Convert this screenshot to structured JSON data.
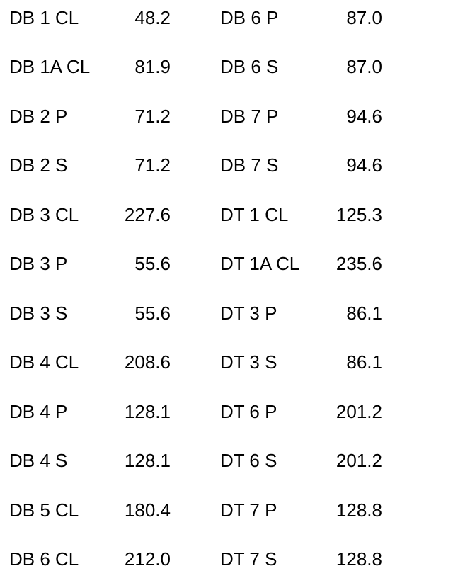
{
  "rows": [
    {
      "left_name": "DB 1 CL",
      "left_value": "48.2",
      "right_name": "DB 6 P",
      "right_value": "87.0"
    },
    {
      "left_name": "DB 1A CL",
      "left_value": "81.9",
      "right_name": "DB 6 S",
      "right_value": "87.0"
    },
    {
      "left_name": "DB 2 P",
      "left_value": "71.2",
      "right_name": "DB 7 P",
      "right_value": "94.6"
    },
    {
      "left_name": "DB 2 S",
      "left_value": "71.2",
      "right_name": "DB 7 S",
      "right_value": "94.6"
    },
    {
      "left_name": "DB 3 CL",
      "left_value": "227.6",
      "right_name": "DT 1 CL",
      "right_value": "125.3"
    },
    {
      "left_name": "DB 3 P",
      "left_value": "55.6",
      "right_name": "DT 1A CL",
      "right_value": "235.6"
    },
    {
      "left_name": "DB 3 S",
      "left_value": "55.6",
      "right_name": "DT 3 P",
      "right_value": "86.1"
    },
    {
      "left_name": "DB 4 CL",
      "left_value": "208.6",
      "right_name": "DT 3 S",
      "right_value": "86.1"
    },
    {
      "left_name": "DB 4 P",
      "left_value": "128.1",
      "right_name": "DT 6 P",
      "right_value": "201.2"
    },
    {
      "left_name": "DB 4 S",
      "left_value": "128.1",
      "right_name": "DT 6 S",
      "right_value": "201.2"
    },
    {
      "left_name": "DB 5 CL",
      "left_value": "180.4",
      "right_name": "DT 7 P",
      "right_value": "128.8"
    },
    {
      "left_name": "DB 6 CL",
      "left_value": "212.0",
      "right_name": "DT 7 S",
      "right_value": "128.8"
    }
  ]
}
